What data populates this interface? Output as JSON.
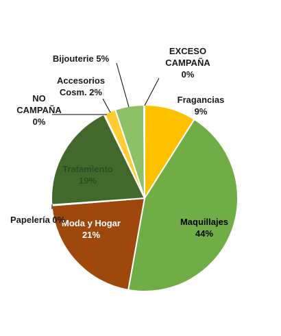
{
  "chart_data": {
    "type": "pie",
    "slices": [
      {
        "label": "Fragancias",
        "value": 9,
        "display": "9%",
        "color": "#FFC000"
      },
      {
        "label": "Maquillajes",
        "value": 44,
        "display": "44%",
        "color": "#70AD47"
      },
      {
        "label": "Moda y Hogar",
        "value": 21,
        "display": "21%",
        "color": "#9E480E"
      },
      {
        "label": "Papelería",
        "value": 0,
        "display": "0%",
        "color": "#FFC000"
      },
      {
        "label": "Tratamiento",
        "value": 19,
        "display": "19%",
        "color": "#43682B"
      },
      {
        "label": "NO CAMPAÑA",
        "value": 0,
        "display": "0%",
        "color": "#70AD47"
      },
      {
        "label": "Accesorios Cosm.",
        "value": 2,
        "display": "2%",
        "color": "#FFCD33"
      },
      {
        "label": "Bijouterie",
        "value": 5,
        "display": "5%",
        "color": "#8CC168"
      },
      {
        "label": "EXCESO CAMPAÑA",
        "value": 0,
        "display": "0%",
        "color": "#70AD47"
      }
    ],
    "label_colors": {
      "inside_light": "#ffffff",
      "inside_dark": "#000000",
      "tratamiento": "#2E4A1E",
      "outside": "#1a1a1a"
    },
    "title": "",
    "legend": "none"
  }
}
